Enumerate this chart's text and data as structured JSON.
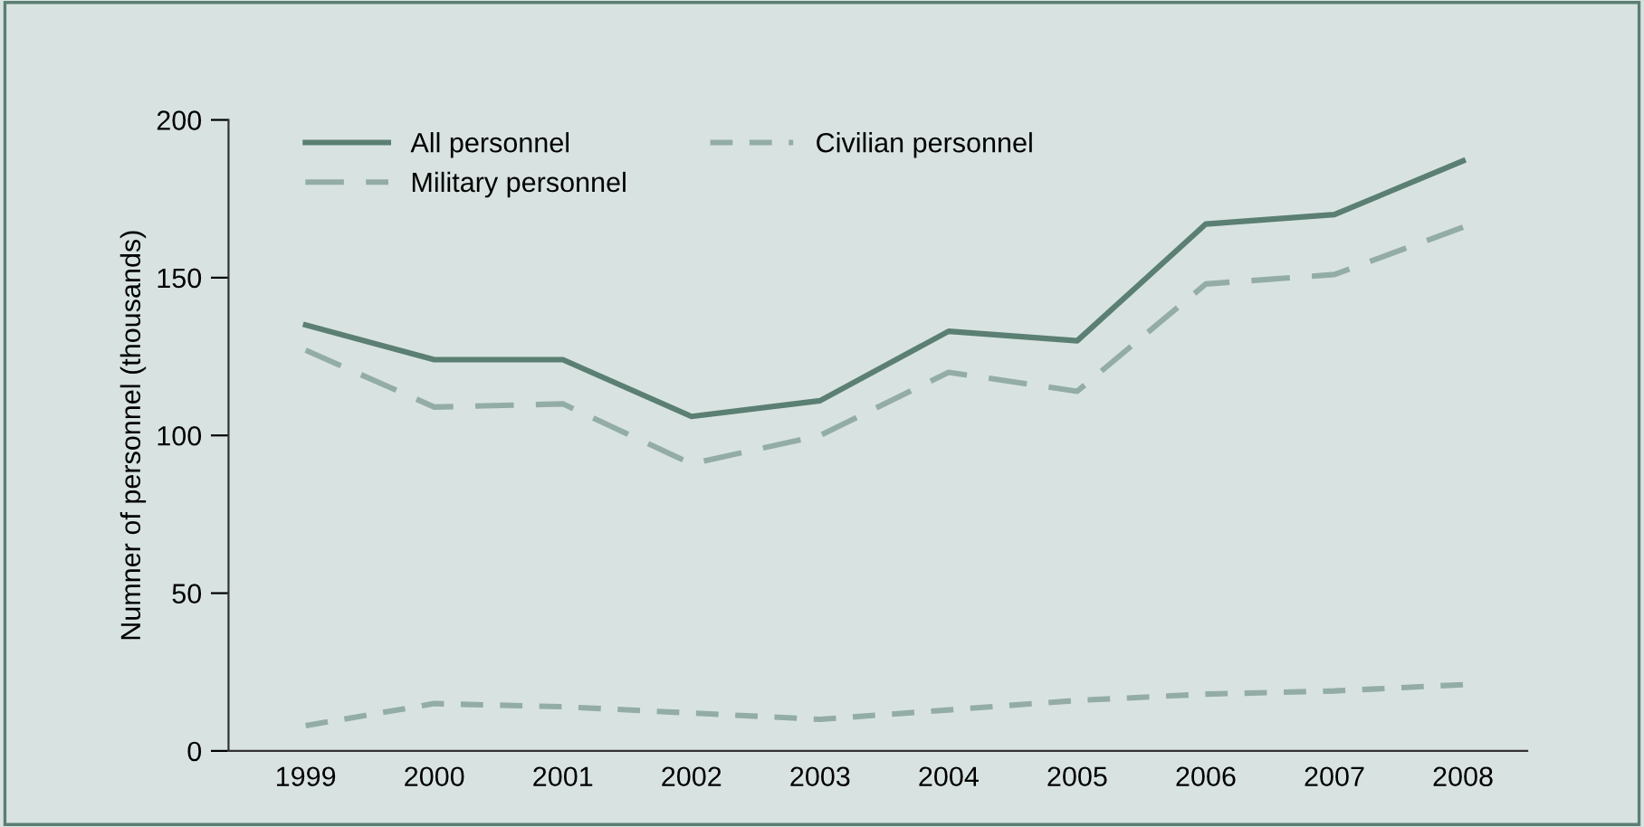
{
  "chart_data": {
    "type": "line",
    "ylabel": "Numner of personnel (thousands)",
    "categories": [
      "1999",
      "2000",
      "2001",
      "2002",
      "2003",
      "2004",
      "2005",
      "2006",
      "2007",
      "2008"
    ],
    "series": [
      {
        "name": "All personnel",
        "color": "#5b7f72",
        "line_style": "solid",
        "values": [
          135,
          124,
          124,
          106,
          111,
          133,
          130,
          167,
          170,
          187
        ]
      },
      {
        "name": "Military personnel",
        "color": "#93ada6",
        "line_style": "dashed",
        "values": [
          127,
          109,
          110,
          91,
          100,
          120,
          114,
          148,
          151,
          166
        ]
      },
      {
        "name": "Civilian personnel",
        "color": "#93ada6",
        "line_style": "dotted",
        "values": [
          8,
          15,
          14,
          12,
          10,
          13,
          16,
          18,
          19,
          21
        ]
      }
    ],
    "ylim": [
      0,
      200
    ],
    "yticks": [
      0,
      50,
      100,
      150,
      200
    ],
    "grid": false,
    "legend": "top left",
    "marker": "none"
  }
}
